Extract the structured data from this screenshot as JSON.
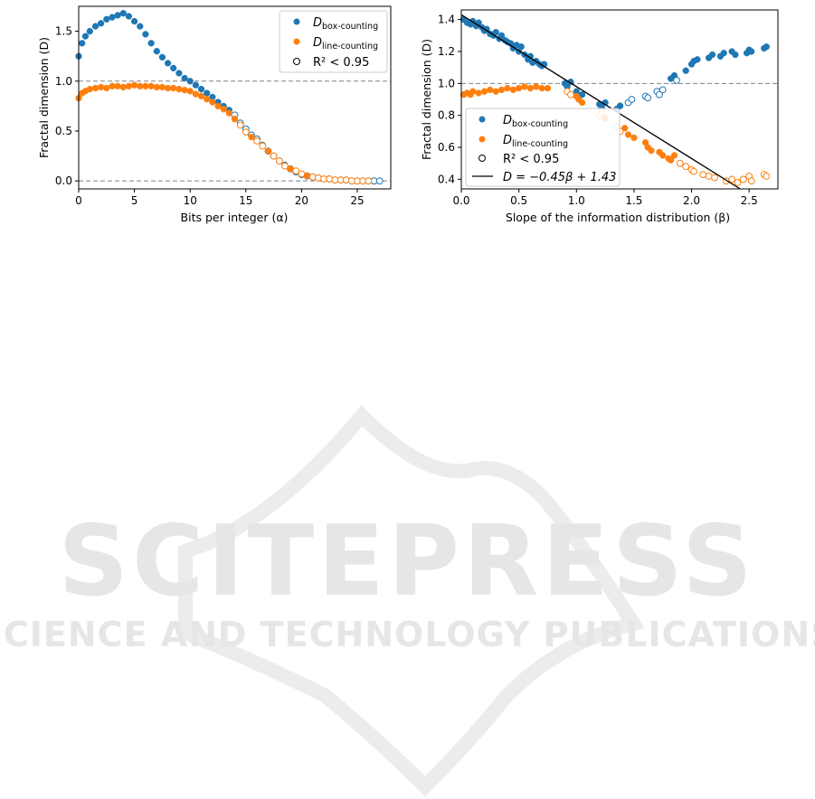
{
  "watermark": {
    "title": "SCITEPRESS",
    "subtitle": "SCIENCE AND TECHNOLOGY PUBLICATIONS"
  },
  "chart_data": [
    {
      "type": "scatter",
      "xlabel": "Bits per integer (α)",
      "ylabel": "Fractal dimension (D)",
      "xlim": [
        0,
        28
      ],
      "ylim": [
        -0.08,
        1.75
      ],
      "xticks": [
        0,
        5,
        10,
        15,
        20,
        25
      ],
      "yticks": [
        0.0,
        0.5,
        1.0,
        1.5
      ],
      "xtick_labels": [
        "0",
        "5",
        "10",
        "15",
        "20",
        "25"
      ],
      "ytick_labels": [
        "0.0",
        "0.5",
        "1.0",
        "1.5"
      ],
      "reference_lines": [
        1.0,
        0.0
      ],
      "legend": {
        "placement": "top-right",
        "entries": [
          {
            "main": "D",
            "sub": "box-counting"
          },
          {
            "main": "D",
            "sub": "line-counting"
          },
          {
            "main": "R² < 0.95",
            "sub": ""
          }
        ]
      },
      "colors": {
        "box": "#1f77b4",
        "line": "#ff7f0e"
      },
      "series": [
        {
          "name": "D_box-counting",
          "x": [
            0.0,
            0.3,
            0.6,
            1.0,
            1.5,
            2.0,
            2.5,
            3.0,
            3.5,
            4.0,
            4.5,
            5.0,
            5.5,
            6.0,
            6.5,
            7.0,
            7.5,
            8.0,
            8.5,
            9.0,
            9.5,
            10.0,
            10.5,
            11.0,
            11.5,
            12.0,
            12.5,
            13.0,
            13.5,
            14.0,
            14.5,
            15.0,
            15.5,
            16.0,
            16.5,
            17.0,
            17.5,
            18.0,
            18.5,
            19.0,
            19.5,
            20.0,
            20.5,
            21.0,
            21.5,
            22.0,
            22.5,
            23.0,
            23.5,
            24.0,
            24.5,
            25.0,
            25.5,
            26.0,
            26.5,
            27.0
          ],
          "y": [
            1.25,
            1.38,
            1.45,
            1.5,
            1.55,
            1.58,
            1.62,
            1.64,
            1.66,
            1.68,
            1.65,
            1.6,
            1.55,
            1.47,
            1.38,
            1.3,
            1.24,
            1.18,
            1.13,
            1.08,
            1.03,
            1.0,
            0.96,
            0.92,
            0.88,
            0.84,
            0.79,
            0.75,
            0.71,
            0.66,
            0.58,
            0.52,
            0.46,
            0.42,
            0.36,
            0.3,
            0.25,
            0.2,
            0.16,
            0.12,
            0.09,
            0.06,
            0.05,
            0.04,
            0.03,
            0.02,
            0.02,
            0.01,
            0.01,
            0.01,
            0.0,
            0.0,
            0.0,
            0.0,
            0.0,
            0.0
          ],
          "r2_below": [
            false,
            false,
            false,
            false,
            false,
            false,
            false,
            false,
            false,
            false,
            false,
            false,
            false,
            false,
            false,
            false,
            false,
            false,
            false,
            false,
            false,
            false,
            false,
            false,
            false,
            false,
            false,
            false,
            false,
            true,
            true,
            true,
            true,
            true,
            false,
            true,
            true,
            true,
            false,
            true,
            true,
            false,
            true,
            true,
            true,
            false,
            true,
            true,
            true,
            true,
            true,
            true,
            true,
            true,
            true,
            true
          ]
        },
        {
          "name": "D_line-counting",
          "x": [
            0.0,
            0.3,
            0.6,
            1.0,
            1.5,
            2.0,
            2.5,
            3.0,
            3.5,
            4.0,
            4.5,
            5.0,
            5.5,
            6.0,
            6.5,
            7.0,
            7.5,
            8.0,
            8.5,
            9.0,
            9.5,
            10.0,
            10.5,
            11.0,
            11.5,
            12.0,
            12.5,
            13.0,
            13.5,
            14.0,
            14.5,
            15.0,
            15.5,
            16.0,
            16.5,
            17.0,
            17.5,
            18.0,
            18.5,
            19.0,
            19.5,
            20.0,
            20.5,
            21.0,
            21.5,
            22.0,
            22.5,
            23.0,
            23.5,
            24.0,
            24.5,
            25.0,
            25.5,
            26.0
          ],
          "y": [
            0.83,
            0.88,
            0.9,
            0.92,
            0.93,
            0.94,
            0.93,
            0.95,
            0.95,
            0.94,
            0.95,
            0.96,
            0.95,
            0.95,
            0.95,
            0.94,
            0.94,
            0.93,
            0.93,
            0.92,
            0.91,
            0.9,
            0.87,
            0.85,
            0.82,
            0.79,
            0.75,
            0.72,
            0.68,
            0.62,
            0.56,
            0.49,
            0.44,
            0.4,
            0.35,
            0.3,
            0.25,
            0.2,
            0.15,
            0.12,
            0.1,
            0.07,
            0.05,
            0.04,
            0.03,
            0.02,
            0.02,
            0.01,
            0.01,
            0.01,
            0.0,
            0.0,
            0.0,
            0.0
          ],
          "r2_below": [
            false,
            false,
            false,
            false,
            false,
            false,
            false,
            false,
            false,
            false,
            false,
            false,
            false,
            false,
            false,
            false,
            false,
            false,
            false,
            false,
            false,
            false,
            false,
            false,
            false,
            false,
            false,
            false,
            false,
            false,
            true,
            true,
            false,
            true,
            true,
            false,
            true,
            true,
            true,
            false,
            true,
            true,
            false,
            true,
            true,
            true,
            true,
            true,
            true,
            true,
            true,
            true,
            true,
            true
          ]
        }
      ]
    },
    {
      "type": "scatter",
      "xlabel": "Slope of the information distribution (β)",
      "ylabel": "Fractal dimension (D)",
      "xlim": [
        0.0,
        2.75
      ],
      "ylim": [
        0.34,
        1.46
      ],
      "xticks": [
        0.0,
        0.5,
        1.0,
        1.5,
        2.0,
        2.5
      ],
      "yticks": [
        0.4,
        0.6,
        0.8,
        1.0,
        1.2,
        1.4
      ],
      "xtick_labels": [
        "0.0",
        "0.5",
        "1.0",
        "1.5",
        "2.0",
        "2.5"
      ],
      "ytick_labels": [
        "0.4",
        "0.6",
        "0.8",
        "1.0",
        "1.2",
        "1.4"
      ],
      "reference_lines": [
        1.0
      ],
      "fit_line": {
        "slope": -0.45,
        "intercept": 1.43,
        "label": "D = −0.45β + 1.43"
      },
      "legend": {
        "placement": "lower-left",
        "entries": [
          {
            "main": "D",
            "sub": "box-counting"
          },
          {
            "main": "D",
            "sub": "line-counting"
          },
          {
            "main": "R² < 0.95",
            "sub": ""
          },
          {
            "main": "D = −0.45β + 1.43",
            "sub": ""
          }
        ]
      },
      "colors": {
        "box": "#1f77b4",
        "line": "#ff7f0e",
        "fit": "#000000"
      },
      "series": [
        {
          "name": "D_box-counting",
          "x": [
            0.02,
            0.05,
            0.08,
            0.1,
            0.13,
            0.15,
            0.18,
            0.2,
            0.22,
            0.25,
            0.28,
            0.3,
            0.33,
            0.35,
            0.38,
            0.4,
            0.43,
            0.45,
            0.48,
            0.5,
            0.52,
            0.55,
            0.58,
            0.6,
            0.62,
            0.65,
            0.68,
            0.7,
            0.72,
            0.9,
            0.92,
            0.95,
            1.0,
            1.02,
            1.05,
            1.2,
            1.22,
            1.25,
            1.35,
            1.38,
            1.45,
            1.48,
            1.6,
            1.62,
            1.7,
            1.72,
            1.75,
            1.82,
            1.85,
            1.87,
            1.95,
            2.0,
            2.02,
            2.05,
            2.15,
            2.18,
            2.25,
            2.28,
            2.35,
            2.38,
            2.48,
            2.5,
            2.52,
            2.63,
            2.65
          ],
          "y": [
            1.4,
            1.38,
            1.37,
            1.39,
            1.36,
            1.38,
            1.35,
            1.33,
            1.34,
            1.31,
            1.3,
            1.32,
            1.28,
            1.3,
            1.27,
            1.26,
            1.25,
            1.22,
            1.24,
            1.2,
            1.23,
            1.18,
            1.15,
            1.17,
            1.13,
            1.14,
            1.12,
            1.11,
            1.12,
            1.0,
            0.98,
            1.01,
            0.95,
            0.92,
            0.93,
            0.87,
            0.85,
            0.88,
            0.84,
            0.86,
            0.88,
            0.9,
            0.92,
            0.91,
            0.95,
            0.93,
            0.96,
            1.03,
            1.05,
            1.02,
            1.08,
            1.12,
            1.14,
            1.15,
            1.16,
            1.18,
            1.17,
            1.19,
            1.2,
            1.18,
            1.19,
            1.21,
            1.2,
            1.22,
            1.23
          ],
          "r2_below": [
            false,
            false,
            false,
            false,
            false,
            false,
            false,
            false,
            false,
            false,
            false,
            false,
            false,
            false,
            false,
            false,
            false,
            false,
            false,
            false,
            false,
            false,
            false,
            false,
            false,
            false,
            false,
            false,
            false,
            false,
            false,
            false,
            false,
            false,
            false,
            false,
            false,
            false,
            false,
            false,
            true,
            true,
            true,
            true,
            true,
            true,
            true,
            false,
            false,
            true,
            false,
            false,
            false,
            false,
            false,
            false,
            false,
            false,
            false,
            false,
            false,
            false,
            false,
            false,
            false
          ]
        },
        {
          "name": "D_line-counting",
          "x": [
            0.02,
            0.05,
            0.08,
            0.1,
            0.15,
            0.2,
            0.25,
            0.3,
            0.35,
            0.4,
            0.45,
            0.5,
            0.55,
            0.6,
            0.65,
            0.7,
            0.75,
            0.92,
            0.95,
            1.0,
            1.02,
            1.05,
            1.2,
            1.22,
            1.25,
            1.35,
            1.38,
            1.42,
            1.45,
            1.5,
            1.6,
            1.62,
            1.65,
            1.72,
            1.75,
            1.8,
            1.82,
            1.85,
            1.9,
            1.95,
            2.0,
            2.02,
            2.1,
            2.15,
            2.2,
            2.3,
            2.35,
            2.4,
            2.45,
            2.5,
            2.52,
            2.63,
            2.65
          ],
          "y": [
            0.93,
            0.94,
            0.93,
            0.95,
            0.94,
            0.95,
            0.96,
            0.95,
            0.96,
            0.97,
            0.96,
            0.97,
            0.98,
            0.97,
            0.98,
            0.97,
            0.97,
            0.95,
            0.93,
            0.92,
            0.9,
            0.88,
            0.8,
            0.82,
            0.78,
            0.73,
            0.7,
            0.72,
            0.68,
            0.66,
            0.63,
            0.6,
            0.58,
            0.57,
            0.55,
            0.53,
            0.52,
            0.55,
            0.5,
            0.48,
            0.46,
            0.45,
            0.43,
            0.42,
            0.41,
            0.39,
            0.4,
            0.38,
            0.4,
            0.42,
            0.39,
            0.43,
            0.42
          ],
          "r2_below": [
            false,
            false,
            false,
            false,
            false,
            false,
            false,
            false,
            false,
            false,
            false,
            false,
            false,
            false,
            false,
            false,
            false,
            true,
            true,
            false,
            false,
            false,
            true,
            true,
            false,
            true,
            true,
            false,
            false,
            false,
            false,
            false,
            false,
            false,
            false,
            false,
            false,
            false,
            true,
            true,
            true,
            true,
            true,
            true,
            true,
            true,
            true,
            true,
            true,
            true,
            true,
            true,
            true
          ]
        }
      ]
    }
  ]
}
